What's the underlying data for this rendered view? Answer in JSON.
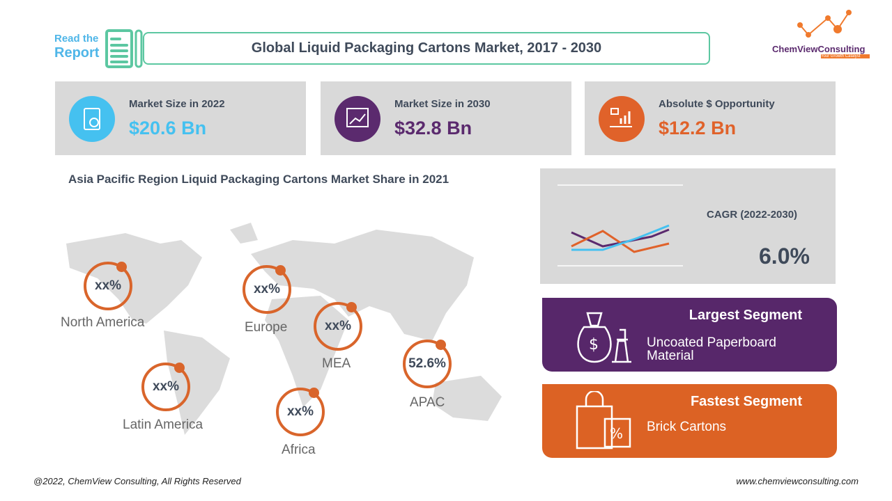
{
  "header": {
    "read_line1": "Read the",
    "read_line2": "Report",
    "title": "Global Liquid Packaging Cartons Market, 2017 - 2030",
    "logo_text": "ChemViewConsulting",
    "logo_tagline": "Your Growth Catalyst"
  },
  "kpis": [
    {
      "label": "Market Size in 2022",
      "value": "$20.6 Bn",
      "color": "#45c1f0",
      "icon": "report-chart-icon"
    },
    {
      "label": "Market Size in 2030",
      "value": "$32.8 Bn",
      "color": "#5b2a6e",
      "icon": "presentation-chart-icon"
    },
    {
      "label": "Absolute $ Opportunity",
      "value": "$12.2 Bn",
      "color": "#e0622a",
      "icon": "hand-growth-icon"
    }
  ],
  "map": {
    "title": "Asia Pacific Region Liquid Packaging Cartons Market Share in 2021",
    "regions": [
      {
        "name": "North America",
        "share": "xx%"
      },
      {
        "name": "Europe",
        "share": "xx%"
      },
      {
        "name": "MEA",
        "share": "xx%"
      },
      {
        "name": "Latin America",
        "share": "xx%"
      },
      {
        "name": "Africa",
        "share": "xx%"
      },
      {
        "name": "APAC",
        "share": "52.6%"
      }
    ]
  },
  "cagr": {
    "label": "CAGR (2022-2030)",
    "value": "6.0%"
  },
  "largest": {
    "heading": "Largest Segment",
    "text": "Uncoated Paperboard Material",
    "color": "#57276a"
  },
  "fastest": {
    "heading": "Fastest Segment",
    "text": "Brick Cartons",
    "color": "#dc6224"
  },
  "footer": {
    "copyright": "@2022, ChemView Consulting, All Rights Reserved",
    "website": "www.chemviewconsulting.com"
  }
}
